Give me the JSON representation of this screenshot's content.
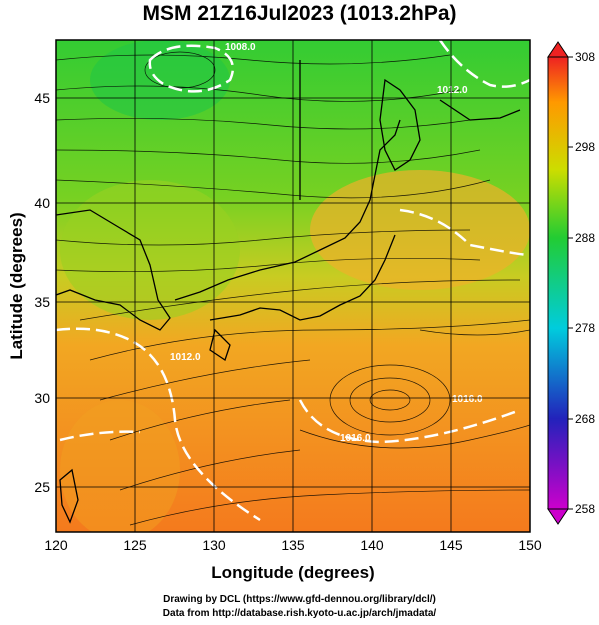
{
  "title": "MSM 21Z16Jul2023 (1013.2hPa)",
  "axes": {
    "xlabel": "Longitude (degrees)",
    "ylabel": "Latitude  (degrees)",
    "xticks": [
      "120",
      "125",
      "130",
      "135",
      "140",
      "145",
      "150"
    ],
    "yticks": [
      "25",
      "30",
      "35",
      "40",
      "45"
    ],
    "xlim": [
      120,
      150
    ],
    "ylim": [
      22.4,
      47.6
    ]
  },
  "colorbar": {
    "ticks": [
      "308",
      "298",
      "288",
      "278",
      "268",
      "258"
    ],
    "range": [
      258,
      308
    ],
    "unit_hint": "K"
  },
  "contours": {
    "labels": [
      "1008.0",
      "1012.0",
      "1012.0",
      "1016.0",
      "1016.0"
    ]
  },
  "credits": {
    "line1": "Drawing by DCL (https://www.gfd-dennou.org/library/dcl/)",
    "line2": "Data from http://database.rish.kyoto-u.ac.jp/arch/jmadata/"
  },
  "colors": {
    "cold": "#cc00cc",
    "cool": "#0033cc",
    "mid": "#22cc33",
    "warm": "#ff8800",
    "hot": "#ee2222",
    "isobar": "#ffffff"
  }
}
